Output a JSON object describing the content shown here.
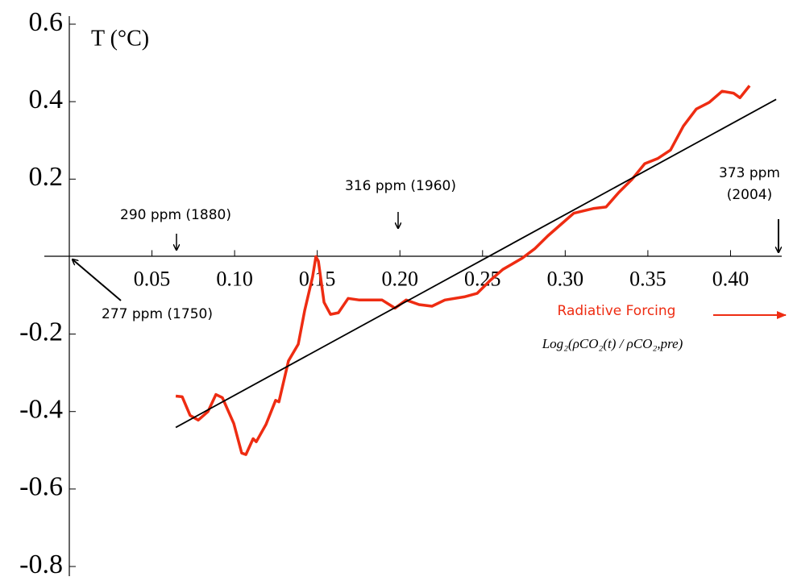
{
  "chart_data": {
    "type": "line",
    "y_label": "T (°C)",
    "x_label": "Radiative Forcing",
    "x_label_formula": "Log₂(ρCO₂(t) / ρCO₂,pre)",
    "annotations": [
      "290 ppm (1880)",
      "316 ppm (1960)",
      "373 ppm",
      "(2004)",
      "277 ppm (1750)"
    ],
    "xlim": [
      0,
      0.43
    ],
    "ylim": [
      -0.8,
      0.6
    ],
    "xticks": [
      0.05,
      {
        "value": 0.1,
        "label": "0.10"
      },
      0.15,
      {
        "value": 0.2,
        "label": "0.20"
      },
      0.25,
      {
        "value": 0.3,
        "label": "0.30"
      },
      0.35,
      {
        "value": 0.4,
        "label": "0.40"
      }
    ],
    "yticks": [
      -0.8,
      -0.6,
      -0.4,
      -0.2,
      0.2,
      0.4,
      0.6
    ],
    "series": [
      {
        "color": "#ee2c12",
        "x": [
          0.0644,
          0.0683,
          0.0731,
          0.078,
          0.0839,
          0.0887,
          0.0926,
          0.0995,
          0.1043,
          0.1068,
          0.1112,
          0.1131,
          0.119,
          0.1248,
          0.1268,
          0.1326,
          0.1385,
          0.1424,
          0.1472,
          0.1492,
          0.1507,
          0.1541,
          0.158,
          0.1628,
          0.1687,
          0.1755,
          0.1824,
          0.1892,
          0.197,
          0.2038,
          0.2116,
          0.2194,
          0.2272,
          0.2389,
          0.2467,
          0.2545,
          0.2623,
          0.274,
          0.2818,
          0.2896,
          0.2974,
          0.3052,
          0.3169,
          0.3247,
          0.3325,
          0.3403,
          0.3481,
          0.3559,
          0.3637,
          0.3715,
          0.3793,
          0.3871,
          0.3949,
          0.4018,
          0.4057,
          0.4115
        ],
        "values": [
          -0.36,
          -0.362,
          -0.41,
          -0.422,
          -0.4,
          -0.356,
          -0.364,
          -0.431,
          -0.507,
          -0.511,
          -0.47,
          -0.478,
          -0.433,
          -0.371,
          -0.375,
          -0.269,
          -0.226,
          -0.139,
          -0.052,
          0.0,
          -0.012,
          -0.118,
          -0.149,
          -0.145,
          -0.108,
          -0.112,
          -0.112,
          -0.112,
          -0.133,
          -0.112,
          -0.124,
          -0.128,
          -0.112,
          -0.104,
          -0.095,
          -0.062,
          -0.033,
          -0.004,
          0.021,
          0.054,
          0.083,
          0.112,
          0.124,
          0.128,
          0.166,
          0.199,
          0.24,
          0.253,
          0.275,
          0.337,
          0.381,
          0.398,
          0.427,
          0.422,
          0.41,
          0.441
        ]
      },
      {
        "color": "#000000",
        "x": [
          0.0644,
          0.4276
        ],
        "values": [
          -0.441,
          0.406
        ]
      }
    ]
  }
}
